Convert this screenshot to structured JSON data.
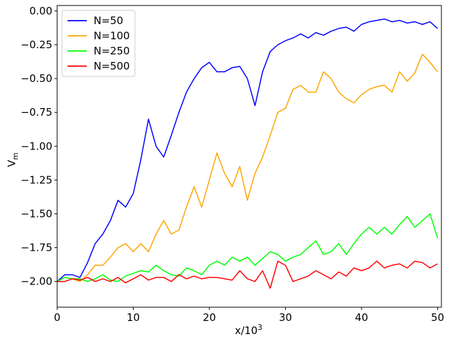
{
  "chart_data": {
    "type": "line",
    "xlabel": "x/10",
    "xlabel_sup": "3",
    "ylabel": "V",
    "ylabel_sub": "m",
    "xlim": [
      0,
      50.5
    ],
    "ylim": [
      -2.19,
      0.04
    ],
    "xticks": [
      0,
      10,
      20,
      30,
      40,
      50
    ],
    "xtick_labels": [
      "0",
      "10",
      "20",
      "30",
      "40",
      "50"
    ],
    "yticks": [
      0.0,
      -0.25,
      -0.5,
      -0.75,
      -1.0,
      -1.25,
      -1.5,
      -1.75,
      -2.0
    ],
    "ytick_labels": [
      "0.00",
      "−0.25",
      "−0.50",
      "−0.75",
      "−1.00",
      "−1.25",
      "−1.50",
      "−1.75",
      "−2.00"
    ],
    "grid": false,
    "legend_position": "top-left",
    "series": [
      {
        "name": "N=50",
        "color": "#0000ff",
        "x": [
          0,
          1,
          2,
          3,
          4,
          5,
          6,
          7,
          8,
          9,
          10,
          11,
          12,
          13,
          14,
          15,
          16,
          17,
          18,
          19,
          20,
          21,
          22,
          23,
          24,
          25,
          26,
          27,
          28,
          29,
          30,
          31,
          32,
          33,
          34,
          35,
          36,
          37,
          38,
          39,
          40,
          41,
          42,
          43,
          44,
          45,
          46,
          47,
          48,
          49,
          50
        ],
        "y": [
          -2.0,
          -1.95,
          -1.95,
          -1.97,
          -1.86,
          -1.72,
          -1.65,
          -1.55,
          -1.4,
          -1.45,
          -1.35,
          -1.1,
          -0.8,
          -1.0,
          -1.08,
          -0.92,
          -0.75,
          -0.6,
          -0.5,
          -0.42,
          -0.38,
          -0.45,
          -0.45,
          -0.42,
          -0.41,
          -0.5,
          -0.7,
          -0.45,
          -0.3,
          -0.25,
          -0.22,
          -0.2,
          -0.17,
          -0.2,
          -0.16,
          -0.18,
          -0.15,
          -0.13,
          -0.12,
          -0.15,
          -0.1,
          -0.08,
          -0.07,
          -0.06,
          -0.08,
          -0.07,
          -0.09,
          -0.08,
          -0.1,
          -0.08,
          -0.13
        ]
      },
      {
        "name": "N=100",
        "color": "#ffa500",
        "x": [
          0,
          1,
          2,
          3,
          4,
          5,
          6,
          7,
          8,
          9,
          10,
          11,
          12,
          13,
          14,
          15,
          16,
          17,
          18,
          19,
          20,
          21,
          22,
          23,
          24,
          25,
          26,
          27,
          28,
          29,
          30,
          31,
          32,
          33,
          34,
          35,
          36,
          37,
          38,
          39,
          40,
          41,
          42,
          43,
          44,
          45,
          46,
          47,
          48,
          49,
          50
        ],
        "y": [
          -2.0,
          -2.0,
          -1.98,
          -2.0,
          -1.95,
          -1.88,
          -1.88,
          -1.82,
          -1.75,
          -1.72,
          -1.78,
          -1.72,
          -1.78,
          -1.65,
          -1.55,
          -1.65,
          -1.62,
          -1.45,
          -1.3,
          -1.45,
          -1.25,
          -1.05,
          -1.2,
          -1.3,
          -1.15,
          -1.4,
          -1.2,
          -1.08,
          -0.92,
          -0.75,
          -0.72,
          -0.58,
          -0.55,
          -0.6,
          -0.6,
          -0.45,
          -0.5,
          -0.6,
          -0.65,
          -0.68,
          -0.62,
          -0.58,
          -0.56,
          -0.55,
          -0.6,
          -0.45,
          -0.52,
          -0.46,
          -0.32,
          -0.38,
          -0.45
        ]
      },
      {
        "name": "N=250",
        "color": "#00ff00",
        "x": [
          0,
          1,
          2,
          3,
          4,
          5,
          6,
          7,
          8,
          9,
          10,
          11,
          12,
          13,
          14,
          15,
          16,
          17,
          18,
          19,
          20,
          21,
          22,
          23,
          24,
          25,
          26,
          27,
          28,
          29,
          30,
          31,
          32,
          33,
          34,
          35,
          36,
          37,
          38,
          39,
          40,
          41,
          42,
          43,
          44,
          45,
          46,
          47,
          48,
          49,
          50
        ],
        "y": [
          -2.0,
          -1.97,
          -1.98,
          -1.98,
          -2.0,
          -1.98,
          -1.95,
          -1.99,
          -2.0,
          -1.96,
          -1.94,
          -1.92,
          -1.93,
          -1.88,
          -1.92,
          -1.95,
          -1.96,
          -1.9,
          -1.92,
          -1.95,
          -1.88,
          -1.85,
          -1.88,
          -1.82,
          -1.85,
          -1.82,
          -1.88,
          -1.83,
          -1.78,
          -1.8,
          -1.85,
          -1.82,
          -1.8,
          -1.75,
          -1.7,
          -1.8,
          -1.78,
          -1.72,
          -1.8,
          -1.72,
          -1.65,
          -1.6,
          -1.65,
          -1.6,
          -1.65,
          -1.58,
          -1.52,
          -1.6,
          -1.55,
          -1.5,
          -1.68
        ]
      },
      {
        "name": "N=500",
        "color": "#ff0000",
        "x": [
          0,
          1,
          2,
          3,
          4,
          5,
          6,
          7,
          8,
          9,
          10,
          11,
          12,
          13,
          14,
          15,
          16,
          17,
          18,
          19,
          20,
          21,
          22,
          23,
          24,
          25,
          26,
          27,
          28,
          29,
          30,
          31,
          32,
          33,
          34,
          35,
          36,
          37,
          38,
          39,
          40,
          41,
          42,
          43,
          44,
          45,
          46,
          47,
          48,
          49,
          50
        ],
        "y": [
          -2.0,
          -2.0,
          -1.98,
          -1.99,
          -1.97,
          -2.0,
          -1.98,
          -2.0,
          -1.97,
          -2.01,
          -1.98,
          -1.95,
          -1.99,
          -1.97,
          -1.97,
          -2.0,
          -1.95,
          -1.98,
          -1.96,
          -1.98,
          -1.97,
          -1.97,
          -1.98,
          -1.99,
          -1.92,
          -1.98,
          -2.0,
          -1.92,
          -2.05,
          -1.85,
          -1.88,
          -2.0,
          -1.98,
          -1.96,
          -1.92,
          -1.95,
          -1.98,
          -1.93,
          -1.96,
          -1.9,
          -1.92,
          -1.9,
          -1.85,
          -1.9,
          -1.88,
          -1.87,
          -1.9,
          -1.85,
          -1.86,
          -1.9,
          -1.87
        ]
      }
    ]
  }
}
